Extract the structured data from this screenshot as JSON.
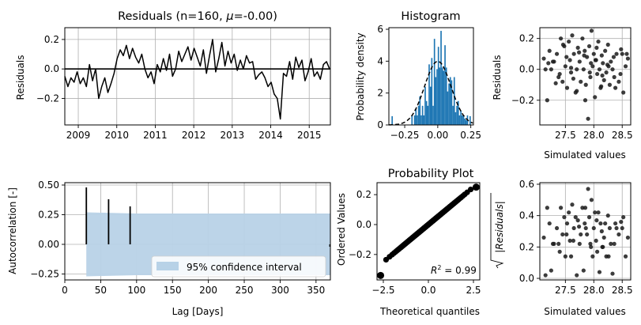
{
  "chart_data": [
    {
      "id": "residuals",
      "type": "line",
      "title": "Residuals (n=160, μ=-0.00)",
      "title_prefix": "Residuals (n=160, ",
      "title_mu": "μ",
      "title_suffix": "=-0.00)",
      "xlabel": "",
      "ylabel": "Residuals",
      "xlim": [
        2008.65,
        2015.55
      ],
      "ylim": [
        -0.38,
        0.28
      ],
      "xticks": [
        2009,
        2010,
        2011,
        2012,
        2013,
        2014,
        2015
      ],
      "xtick_labels": [
        "2009",
        "2010",
        "2011",
        "2012",
        "2013",
        "2014",
        "2015"
      ],
      "yticks": [
        0.2,
        0.0,
        -0.2
      ],
      "ytick_labels": [
        "0.2",
        "0.0",
        "−0.2"
      ],
      "grid": true,
      "zero_line": true,
      "series": [
        {
          "x": [
            2008.65,
            2008.73,
            2008.81,
            2008.89,
            2008.97,
            2009.05,
            2009.13,
            2009.21,
            2009.29,
            2009.37,
            2009.45,
            2009.53,
            2009.61,
            2009.69,
            2009.77,
            2009.85,
            2009.93,
            2010.01,
            2010.09,
            2010.17,
            2010.25,
            2010.33,
            2010.41,
            2010.49,
            2010.57,
            2010.65,
            2010.73,
            2010.81,
            2010.89,
            2010.97,
            2011.05,
            2011.13,
            2011.21,
            2011.29,
            2011.37,
            2011.45,
            2011.53,
            2011.61,
            2011.69,
            2011.77,
            2011.85,
            2011.93,
            2012.01,
            2012.09,
            2012.17,
            2012.25,
            2012.33,
            2012.41,
            2012.49,
            2012.57,
            2012.65,
            2012.73,
            2012.81,
            2012.89,
            2012.97,
            2013.05,
            2013.13,
            2013.21,
            2013.29,
            2013.37,
            2013.45,
            2013.53,
            2013.61,
            2013.69,
            2013.77,
            2013.85,
            2013.93,
            2014.01,
            2014.09,
            2014.17,
            2014.25,
            2014.33,
            2014.41,
            2014.49,
            2014.57,
            2014.65,
            2014.73,
            2014.81,
            2014.89,
            2014.97,
            2015.05,
            2015.13,
            2015.21,
            2015.29,
            2015.37,
            2015.45,
            2015.53
          ],
          "y": [
            -0.05,
            -0.12,
            -0.06,
            -0.09,
            -0.02,
            -0.1,
            -0.06,
            -0.12,
            0.03,
            -0.08,
            0.0,
            -0.2,
            -0.12,
            -0.06,
            -0.16,
            -0.1,
            -0.03,
            0.07,
            0.13,
            0.09,
            0.16,
            0.07,
            0.14,
            0.08,
            0.04,
            0.1,
            0.0,
            -0.06,
            -0.02,
            -0.1,
            0.03,
            -0.02,
            0.07,
            -0.01,
            0.1,
            -0.05,
            0.0,
            0.12,
            0.05,
            0.1,
            0.15,
            0.06,
            0.14,
            0.08,
            0.02,
            0.13,
            -0.03,
            0.09,
            0.2,
            -0.02,
            0.07,
            0.18,
            0.02,
            0.12,
            0.04,
            0.1,
            -0.01,
            0.06,
            0.0,
            0.09,
            0.04,
            0.05,
            -0.07,
            -0.04,
            -0.02,
            -0.06,
            -0.12,
            -0.09,
            -0.17,
            -0.2,
            -0.34,
            -0.03,
            -0.05,
            0.05,
            -0.07,
            0.08,
            0.01,
            0.06,
            -0.08,
            -0.02,
            0.07,
            -0.05,
            -0.02,
            -0.07,
            0.03,
            0.05,
            0.0
          ]
        }
      ]
    },
    {
      "id": "histogram",
      "type": "bar",
      "title": "Histogram",
      "xlabel": "",
      "ylabel": "Probability density",
      "xlim": [
        -0.37,
        0.27
      ],
      "ylim": [
        0,
        6.1
      ],
      "xticks": [
        -0.25,
        0.0,
        0.25
      ],
      "xtick_labels": [
        "−0.25",
        "0.00",
        "0.25"
      ],
      "yticks": [
        0,
        2,
        4,
        6
      ],
      "ytick_labels": [
        "0",
        "2",
        "4",
        "6"
      ],
      "grid": false,
      "bar_color": "#1f77b4",
      "bins": [
        -0.35,
        -0.34,
        -0.33,
        -0.32,
        -0.31,
        -0.3,
        -0.29,
        -0.28,
        -0.27,
        -0.26,
        -0.25,
        -0.24,
        -0.23,
        -0.22,
        -0.21,
        -0.2,
        -0.19,
        -0.18,
        -0.17,
        -0.16,
        -0.15,
        -0.14,
        -0.13,
        -0.12,
        -0.11,
        -0.1,
        -0.09,
        -0.08,
        -0.07,
        -0.06,
        -0.05,
        -0.04,
        -0.03,
        -0.02,
        -0.01,
        0.0,
        0.01,
        0.02,
        0.03,
        0.04,
        0.05,
        0.06,
        0.07,
        0.08,
        0.09,
        0.1,
        0.11,
        0.12,
        0.13,
        0.14,
        0.15,
        0.16,
        0.17,
        0.18,
        0.19,
        0.2,
        0.21,
        0.22,
        0.23,
        0.24
      ],
      "values": [
        0.55,
        0,
        0,
        0,
        0,
        0,
        0,
        0,
        0,
        0,
        0,
        0,
        0,
        0,
        0,
        0.6,
        0,
        0.6,
        1.0,
        0.6,
        1.2,
        1.8,
        0.6,
        1.2,
        0.6,
        2.4,
        1.5,
        1.2,
        3.8,
        2.4,
        4.2,
        1.2,
        5.4,
        3.0,
        3.5,
        4.9,
        3.6,
        5.9,
        3.6,
        3.4,
        5.0,
        3.6,
        2.1,
        2.6,
        3.0,
        2.8,
        1.2,
        3.0,
        0.8,
        1.2,
        1.5,
        0.6,
        0.9,
        0.6,
        0.6,
        0.4,
        0.3,
        0.6,
        0.0,
        0.55
      ],
      "bin_width": 0.01,
      "normal_fit": {
        "mean": 0.0,
        "std": 0.1,
        "style": "dashed",
        "color": "#000000"
      }
    },
    {
      "id": "res-vs-sim",
      "type": "scatter",
      "title": "",
      "xlabel": "Simulated values",
      "ylabel": "Residuals",
      "xlim": [
        27.05,
        28.65
      ],
      "ylim": [
        -0.36,
        0.27
      ],
      "xticks": [
        27.5,
        28.0,
        28.5
      ],
      "xtick_labels": [
        "27.5",
        "28.0",
        "28.5"
      ],
      "yticks": [
        0.2,
        0.0,
        -0.2
      ],
      "ytick_labels": [
        "0.2",
        "0.0",
        "−0.2"
      ],
      "grid": true,
      "marker_color": "#1a1a1a",
      "x": [
        27.12,
        27.18,
        27.22,
        27.25,
        27.3,
        27.35,
        27.38,
        27.42,
        27.45,
        27.48,
        27.5,
        27.53,
        27.56,
        27.58,
        27.6,
        27.62,
        27.65,
        27.68,
        27.7,
        27.72,
        27.75,
        27.77,
        27.8,
        27.82,
        27.84,
        27.86,
        27.88,
        27.9,
        27.92,
        27.94,
        27.96,
        27.98,
        28.0,
        28.02,
        28.04,
        28.06,
        28.08,
        28.1,
        28.12,
        28.14,
        28.16,
        28.18,
        28.2,
        28.22,
        28.25,
        28.28,
        28.3,
        28.33,
        28.36,
        28.4,
        28.44,
        28.48,
        28.52,
        28.56,
        28.6,
        27.15,
        27.28,
        27.4,
        27.52,
        27.64,
        27.74,
        27.85,
        27.95,
        28.05,
        28.15,
        28.26,
        28.38,
        28.5,
        27.2,
        27.33,
        27.46,
        27.6,
        27.7,
        27.83,
        27.93,
        28.03,
        28.13,
        28.24,
        28.35,
        28.47,
        28.58
      ],
      "y": [
        0.07,
        -0.2,
        0.12,
        0.0,
        0.05,
        0.1,
        -0.05,
        0.2,
        -0.08,
        0.15,
        0.02,
        -0.12,
        0.18,
        0.06,
        -0.02,
        0.22,
        0.1,
        -0.15,
        0.0,
        0.14,
        0.05,
        -0.08,
        0.2,
        0.0,
        0.12,
        -0.1,
        0.08,
        -0.32,
        0.15,
        -0.05,
        0.25,
        0.02,
        0.1,
        -0.18,
        0.06,
        -0.03,
        0.18,
        0.0,
        -0.12,
        0.09,
        0.04,
        -0.07,
        0.12,
        -0.02,
        0.16,
        -0.1,
        0.05,
        0.0,
        -0.05,
        0.1,
        -0.08,
        0.13,
        -0.15,
        0.02,
        0.07,
        0.0,
        0.05,
        -0.03,
        0.08,
        -0.06,
        0.11,
        -0.2,
        0.04,
        0.14,
        -0.04,
        0.02,
        -0.12,
        0.1,
        0.04,
        -0.09,
        0.16,
        0.01,
        -0.14,
        0.09,
        -0.02,
        0.06,
        -0.11,
        0.03,
        0.08,
        -0.03,
        0.1
      ]
    },
    {
      "id": "autocorrelation",
      "type": "bar",
      "title": "",
      "xlabel": "Lag [Days]",
      "ylabel": "Autocorrelation [-]",
      "xlim": [
        0,
        370
      ],
      "ylim": [
        -0.3,
        0.52
      ],
      "xticks": [
        0,
        50,
        100,
        150,
        200,
        250,
        300,
        350
      ],
      "xtick_labels": [
        "0",
        "50",
        "100",
        "150",
        "200",
        "250",
        "300",
        "350"
      ],
      "yticks": [
        0.5,
        0.25,
        0.0,
        -0.25
      ],
      "ytick_labels": [
        "0.50",
        "0.25",
        "0.00",
        "−0.25"
      ],
      "grid": true,
      "lags": [
        30,
        61,
        91,
        370
      ],
      "values": [
        0.48,
        0.38,
        0.32,
        -0.02
      ],
      "confidence_band": {
        "x": [
          30,
          100,
          370
        ],
        "upper": [
          0.27,
          0.26,
          0.26
        ],
        "lower": [
          -0.27,
          -0.26,
          -0.26
        ],
        "color": "#b8d2e7",
        "label": "95% confidence interval"
      },
      "legend_position": "lower right"
    },
    {
      "id": "probability-plot",
      "type": "scatter",
      "title": "Probability Plot",
      "xlabel": "Theoretical quantiles",
      "ylabel": "Ordered Values",
      "xlim": [
        -2.85,
        2.85
      ],
      "ylim": [
        -0.37,
        0.28
      ],
      "xticks": [
        -2.5,
        0.0,
        2.5
      ],
      "xtick_labels": [
        "−2.5",
        "0.0",
        "2.5"
      ],
      "yticks": [
        0.2,
        0.0,
        -0.2
      ],
      "ytick_labels": [
        "0.2",
        "0.0",
        "−0.2"
      ],
      "grid": false,
      "annotation": "R² = 0.99",
      "annotation_base": "R",
      "annotation_sup": "2",
      "annotation_tail": " = 0.99",
      "n": 160,
      "slope": 0.1,
      "intercept": 0.0,
      "outliers": [
        {
          "x": -2.65,
          "y": -0.34
        },
        {
          "x": 2.65,
          "y": 0.25
        }
      ]
    },
    {
      "id": "sqrt-abs-res-vs-sim",
      "type": "scatter",
      "title": "",
      "xlabel": "Simulated values",
      "ylabel": "√|Residuals|",
      "ylabel_text": "|Residuals|",
      "xlim": [
        27.05,
        28.65
      ],
      "ylim": [
        -0.01,
        0.61
      ],
      "xticks": [
        27.5,
        28.0,
        28.5
      ],
      "xtick_labels": [
        "27.5",
        "28.0",
        "28.5"
      ],
      "yticks": [
        0.6,
        0.4,
        0.2,
        0.0
      ],
      "ytick_labels": [
        "0.6",
        "0.4",
        "0.2",
        "0.0"
      ],
      "grid": true,
      "marker_color": "#1a1a1a",
      "x": [
        27.12,
        27.18,
        27.22,
        27.25,
        27.3,
        27.35,
        27.38,
        27.42,
        27.45,
        27.48,
        27.5,
        27.53,
        27.56,
        27.58,
        27.6,
        27.62,
        27.65,
        27.68,
        27.7,
        27.72,
        27.75,
        27.77,
        27.8,
        27.82,
        27.84,
        27.86,
        27.88,
        27.9,
        27.92,
        27.94,
        27.96,
        27.98,
        28.0,
        28.02,
        28.04,
        28.06,
        28.08,
        28.1,
        28.12,
        28.14,
        28.16,
        28.18,
        28.2,
        28.22,
        28.25,
        28.28,
        28.3,
        28.33,
        28.36,
        28.4,
        28.44,
        28.48,
        28.52,
        28.56,
        28.6,
        27.15,
        27.28,
        27.4,
        27.52,
        27.64,
        27.74,
        27.85,
        27.95,
        28.05,
        28.15,
        28.26,
        28.38,
        28.5
      ],
      "y": [
        0.26,
        0.45,
        0.35,
        0.05,
        0.22,
        0.32,
        0.22,
        0.45,
        0.28,
        0.39,
        0.14,
        0.35,
        0.42,
        0.24,
        0.14,
        0.47,
        0.32,
        0.39,
        0.02,
        0.37,
        0.22,
        0.28,
        0.45,
        0.05,
        0.35,
        0.32,
        0.28,
        0.57,
        0.39,
        0.22,
        0.5,
        0.14,
        0.32,
        0.42,
        0.24,
        0.17,
        0.42,
        0.04,
        0.35,
        0.3,
        0.2,
        0.26,
        0.35,
        0.14,
        0.4,
        0.32,
        0.22,
        0.03,
        0.22,
        0.32,
        0.28,
        0.36,
        0.39,
        0.14,
        0.26,
        0.02,
        0.22,
        0.17,
        0.28,
        0.24,
        0.33,
        0.45,
        0.2,
        0.37,
        0.2,
        0.14,
        0.35,
        0.32
      ]
    }
  ]
}
